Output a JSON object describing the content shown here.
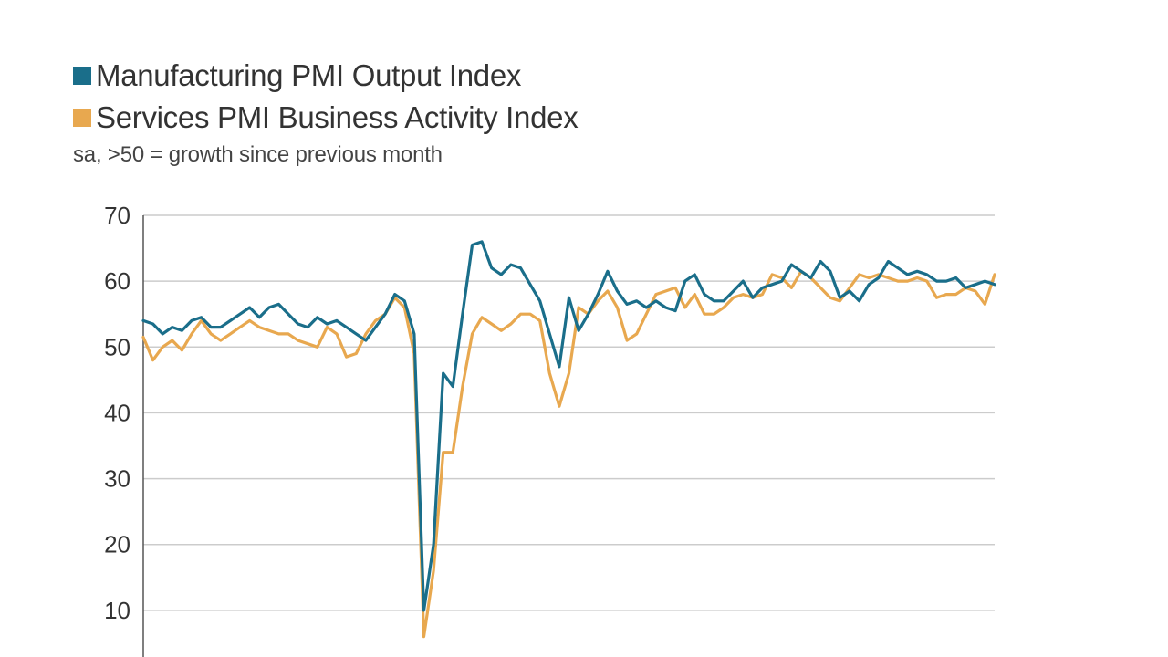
{
  "legend": {
    "series1": "Manufacturing PMI Output Index",
    "series2": "Services PMI Business Activity Index",
    "subtitle": "sa, >50 = growth since previous month"
  },
  "colors": {
    "manufacturing": "#1a6e8a",
    "services": "#e8a84f",
    "grid": "#cccccc",
    "axis": "#555555"
  },
  "chart_data": {
    "type": "line",
    "ylim": [
      0,
      70
    ],
    "yticks": [
      70,
      60,
      50,
      40,
      30,
      20,
      10
    ],
    "grid": true,
    "legend_position": "top-left",
    "series": [
      {
        "name": "Manufacturing PMI Output Index",
        "values": [
          54,
          53.5,
          52,
          53,
          52.5,
          54,
          54.5,
          53,
          53,
          54,
          55,
          56,
          54.5,
          56,
          56.5,
          55,
          53.5,
          53,
          54.5,
          53.5,
          54,
          53,
          52,
          51,
          53,
          55,
          58,
          57,
          52,
          10,
          20,
          46,
          44,
          55,
          65.5,
          66,
          62,
          61,
          62.5,
          62,
          59.5,
          57,
          52,
          47,
          57.5,
          52.5,
          55,
          58,
          61.5,
          58.5,
          56.5,
          57,
          56,
          57,
          56,
          55.5,
          60,
          61,
          58,
          57,
          57,
          58.5,
          60,
          57.5,
          59,
          59.5,
          60,
          62.5,
          61.5,
          60.5,
          63,
          61.5,
          57.5,
          58.5,
          57,
          59.5,
          60.5,
          63,
          62,
          61,
          61.5,
          61,
          60,
          60,
          60.5,
          59,
          59.5,
          60,
          59.5
        ]
      },
      {
        "name": "Services PMI Business Activity Index",
        "values": [
          51.5,
          48,
          50,
          51,
          49.5,
          52,
          54,
          52,
          51,
          52,
          53,
          54,
          53,
          52.5,
          52,
          52,
          51,
          50.5,
          50,
          53,
          52,
          48.5,
          49,
          52,
          54,
          55,
          57.5,
          56,
          49,
          6,
          16,
          34,
          34,
          44,
          52,
          54.5,
          53.5,
          52.5,
          53.5,
          55,
          55,
          54,
          46,
          41,
          46,
          56,
          55,
          57,
          58.5,
          56,
          51,
          52,
          55,
          58,
          58.5,
          59,
          56,
          58,
          55,
          55,
          56,
          57.5,
          58,
          57.5,
          58,
          61,
          60.5,
          59,
          61.5,
          60.5,
          59,
          57.5,
          57,
          59,
          61,
          60.5,
          61,
          60.5,
          60,
          60,
          60.5,
          60,
          57.5,
          58,
          58,
          59,
          58.5,
          56.5,
          61
        ]
      }
    ]
  }
}
